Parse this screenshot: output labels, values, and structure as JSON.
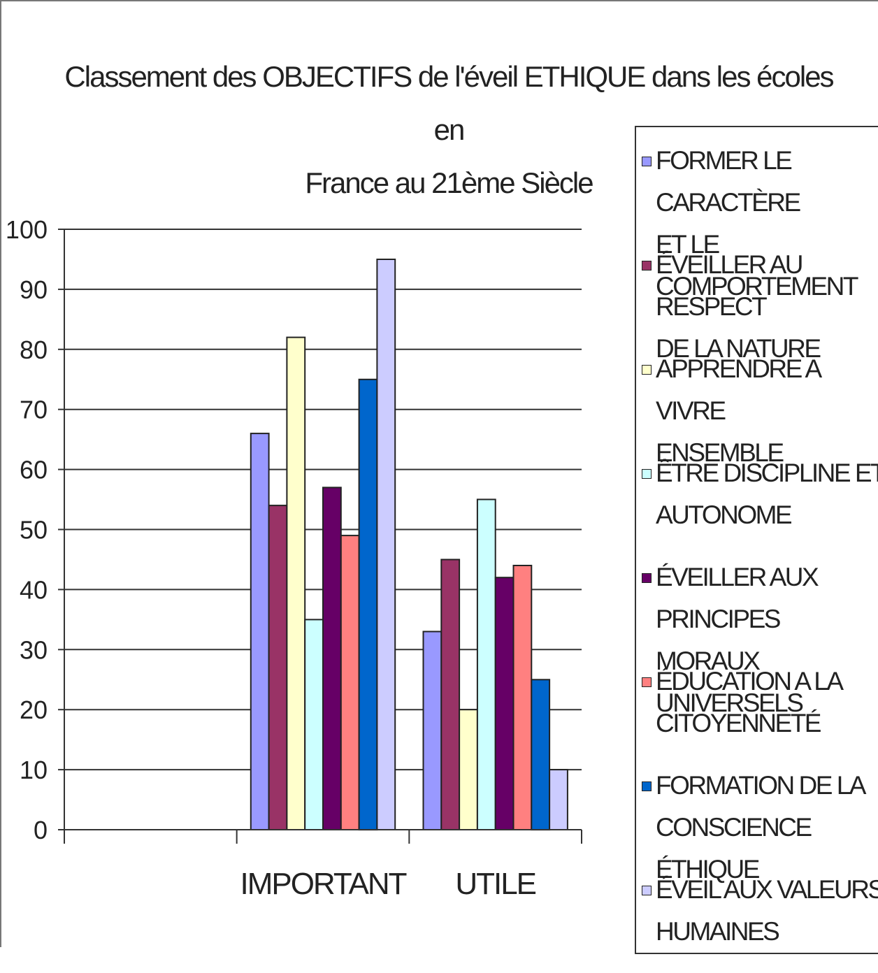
{
  "chart_data": {
    "type": "bar",
    "title": "Classement des OBJECTIFS de l'éveil ETHIQUE dans les écoles en\nFrance au 21ème Siècle",
    "categories": [
      "",
      "IMPORTANT",
      "UTILE"
    ],
    "ylim": [
      0,
      100
    ],
    "yticks": [
      0,
      10,
      20,
      30,
      40,
      50,
      60,
      70,
      80,
      90,
      100
    ],
    "grid": true,
    "legend_position": "right",
    "series": [
      {
        "name": "FORMER LE CARACTÈRE\nET LE COMPORTEMENT",
        "color": "#9999ff",
        "values": [
          null,
          66,
          33
        ]
      },
      {
        "name": "ÉVEILLER AU RESPECT\nDE LA NATURE",
        "color": "#993366",
        "values": [
          null,
          54,
          45
        ]
      },
      {
        "name": "APPRENDRE A VIVRE\nENSEMBLE",
        "color": "#ffffcc",
        "values": [
          null,
          82,
          20
        ]
      },
      {
        "name": "ÊTRE DISCIPLINE ET\nAUTONOME",
        "color": "#ccffff",
        "values": [
          null,
          35,
          55
        ]
      },
      {
        "name": "ÉVEILLER AUX PRINCIPES\nMORAUX UNIVERSELS",
        "color": "#660066",
        "values": [
          null,
          57,
          42
        ]
      },
      {
        "name": "ÉDUCATION A LA\nCITOYENNETÉ",
        "color": "#ff8080",
        "values": [
          null,
          49,
          44
        ]
      },
      {
        "name": "FORMATION DE LA\nCONSCIENCE ÉTHIQUE",
        "color": "#0066cc",
        "values": [
          null,
          75,
          25
        ]
      },
      {
        "name": "ÉVEIL AUX VALEURS\nHUMAINES",
        "color": "#ccccff",
        "values": [
          null,
          95,
          10
        ]
      }
    ]
  }
}
